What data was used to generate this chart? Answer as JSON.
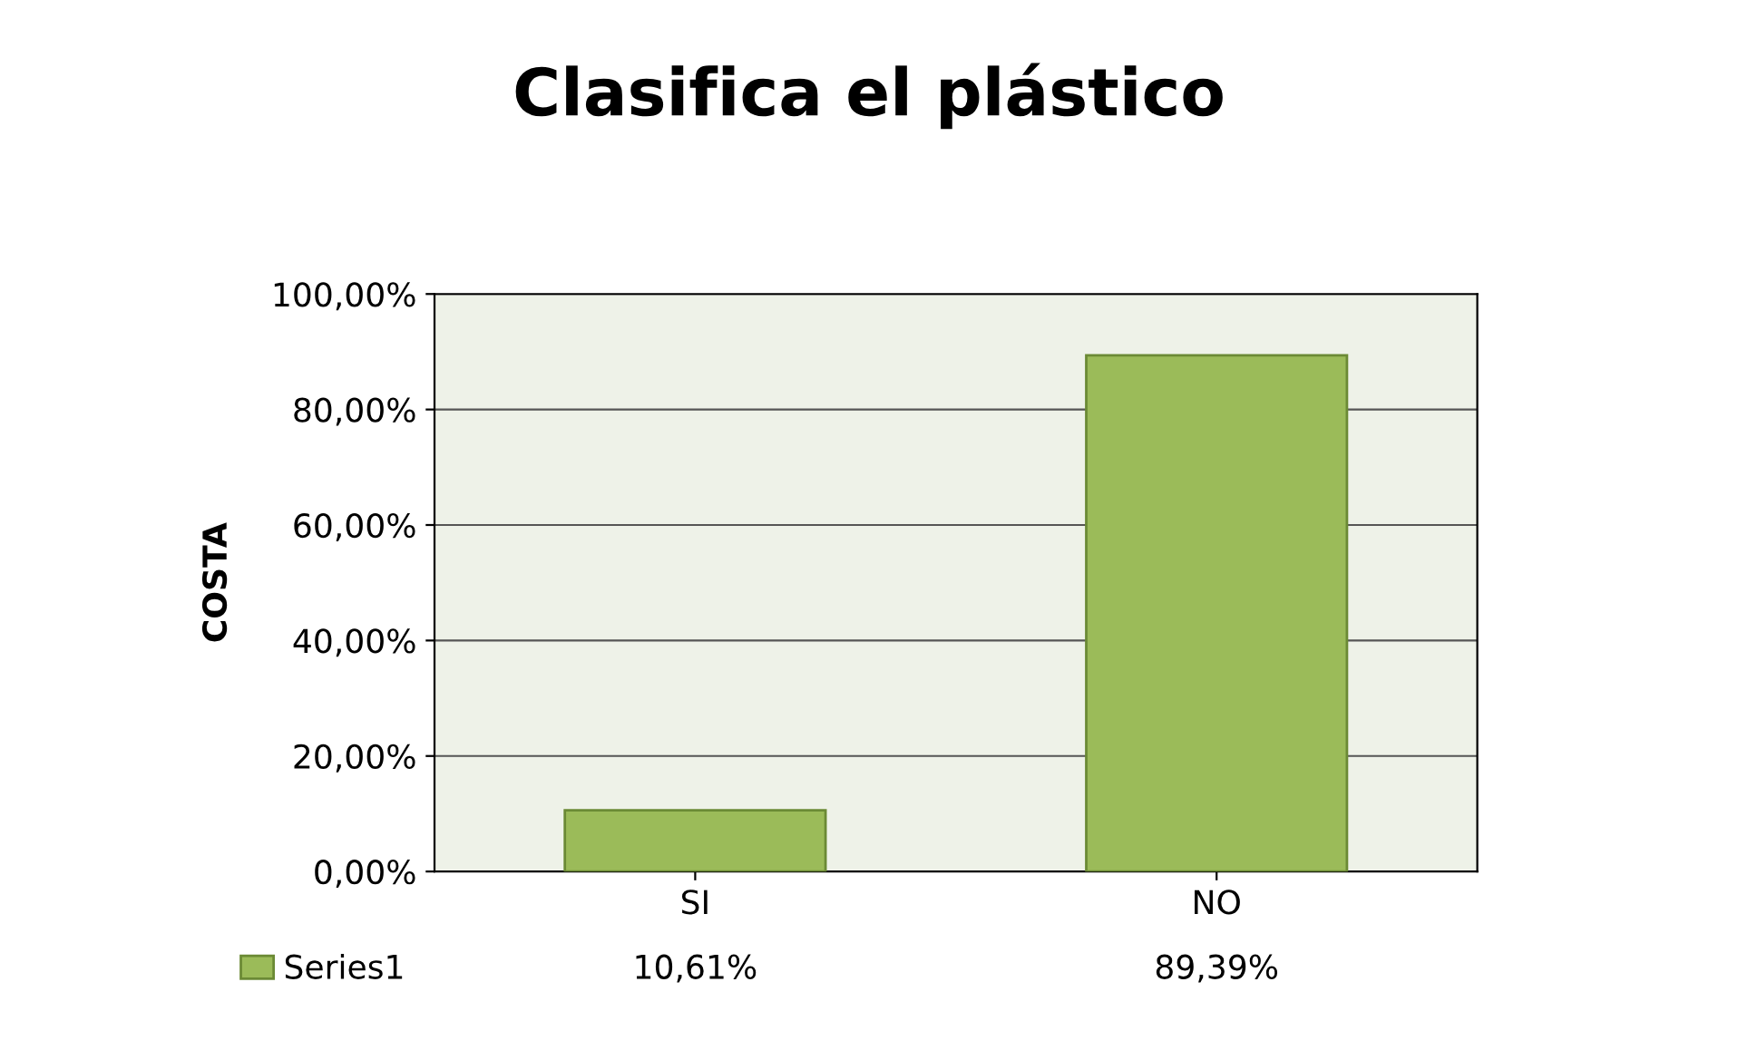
{
  "chart_data": {
    "type": "bar",
    "title": "Clasifica el plástico",
    "ylabel": "COSTA",
    "categories": [
      "SI",
      "NO"
    ],
    "series": [
      {
        "name": "Series1",
        "color": "#9bbb59",
        "values": [
          10.61,
          89.39
        ],
        "value_labels": [
          "10,61%",
          "89,39%"
        ]
      }
    ],
    "ylim": [
      0,
      100
    ],
    "yticks": [
      {
        "value": 0,
        "label": "0,00%"
      },
      {
        "value": 20,
        "label": "20,00%"
      },
      {
        "value": 40,
        "label": "40,00%"
      },
      {
        "value": 60,
        "label": "60,00%"
      },
      {
        "value": 80,
        "label": "80,00%"
      },
      {
        "value": 100,
        "label": "100,00%"
      }
    ],
    "grid": "y",
    "legend": "bottom left"
  }
}
